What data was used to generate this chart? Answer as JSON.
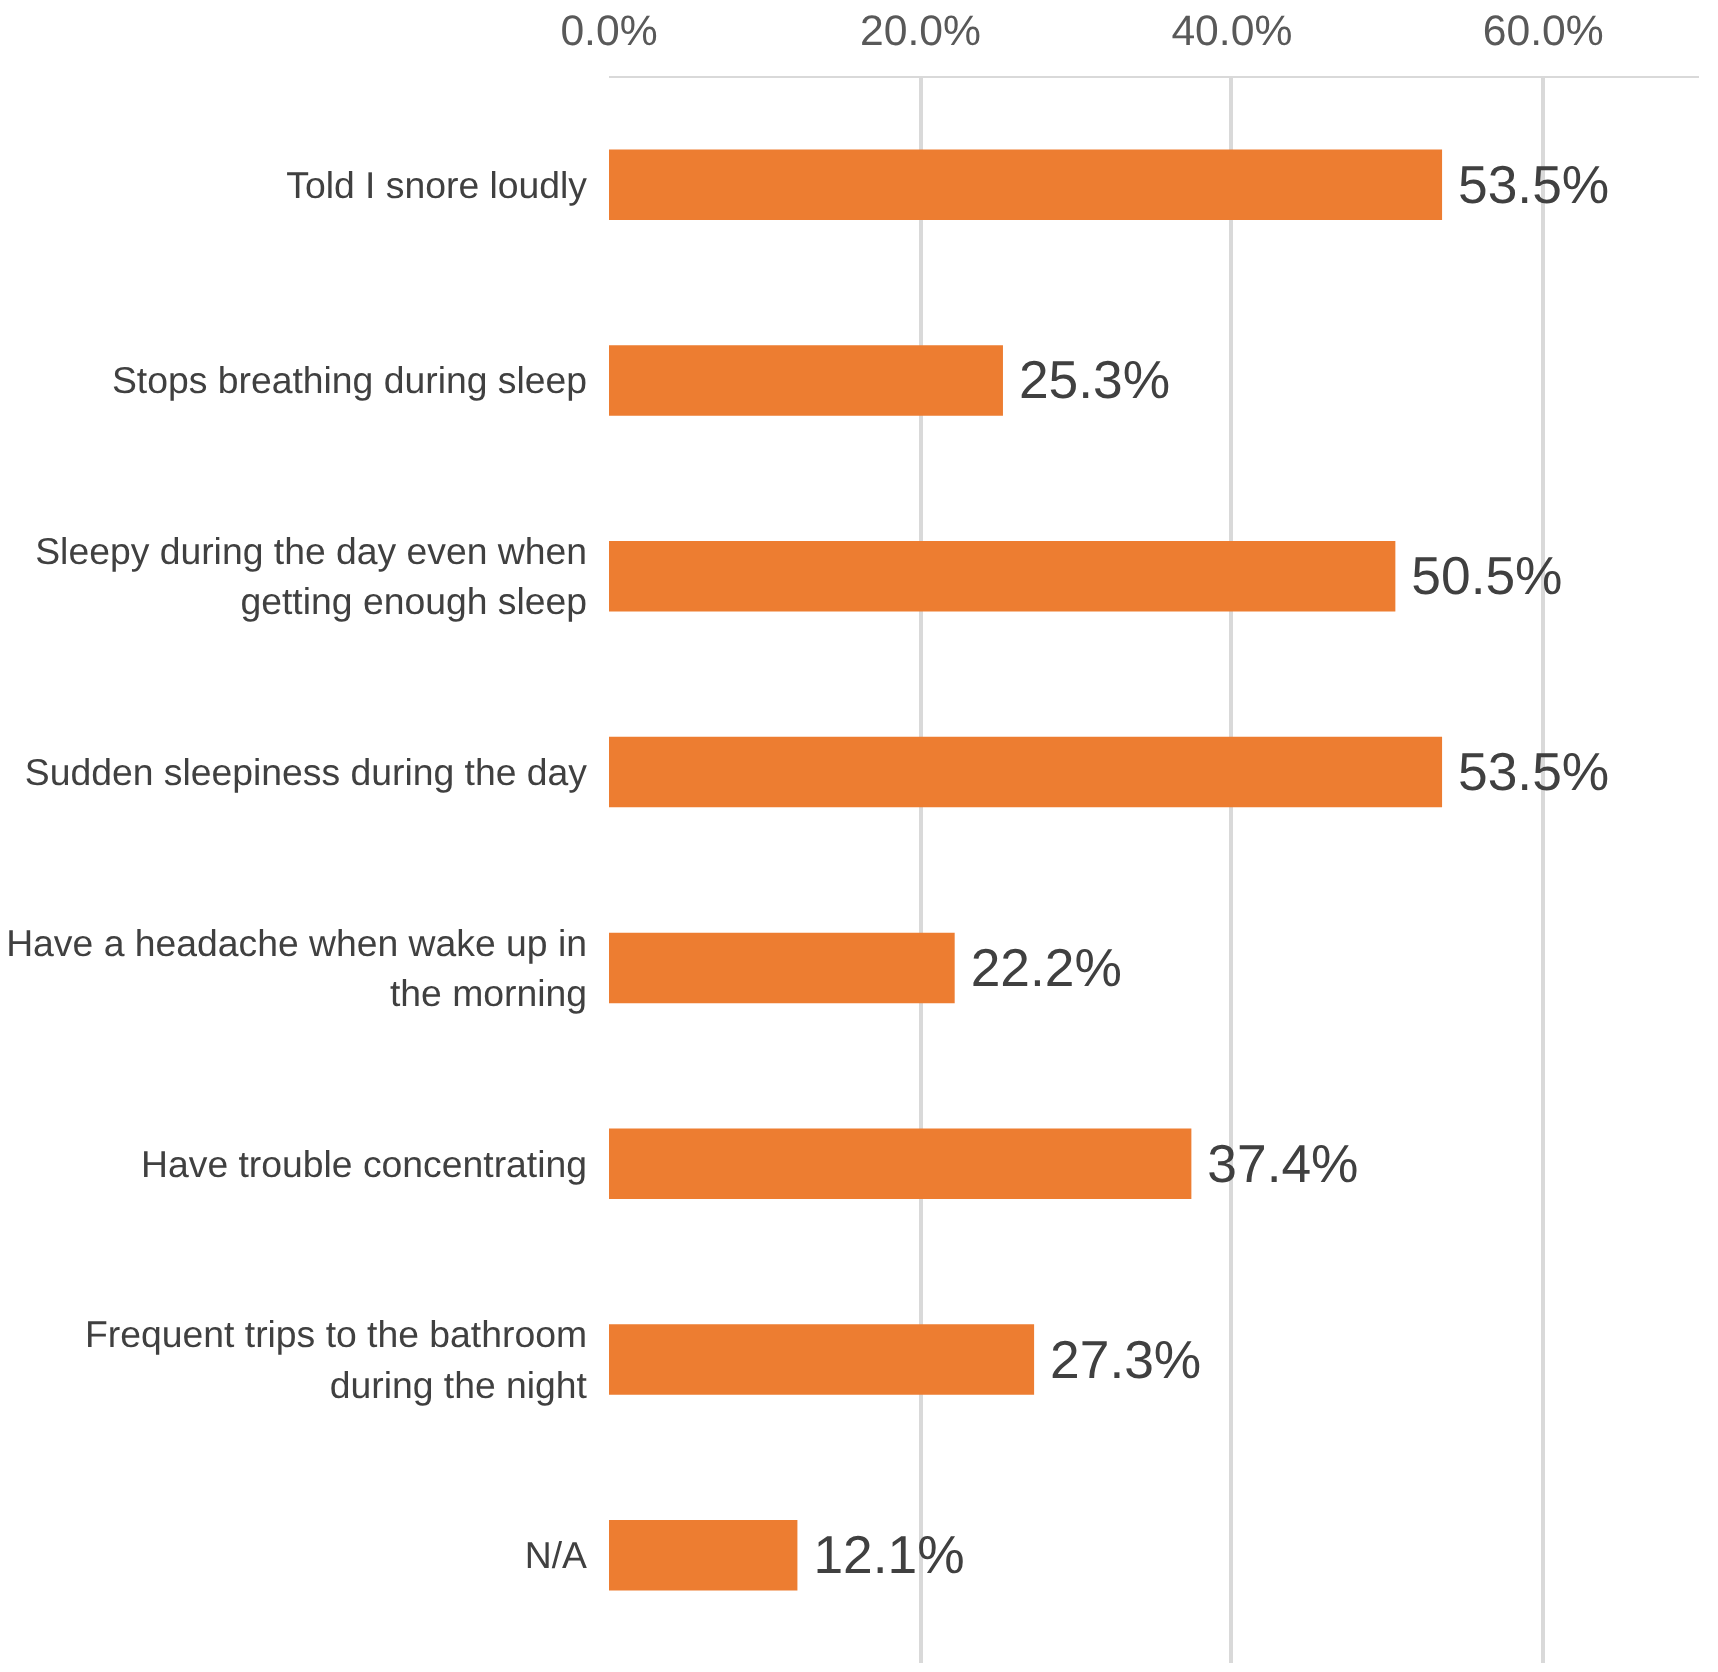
{
  "chart_data": {
    "type": "bar",
    "orientation": "horizontal",
    "categories": [
      "Told I snore loudly",
      "Stops breathing during sleep",
      "Sleepy during the day even when getting enough sleep",
      "Sudden sleepiness during the day",
      "Have a headache when wake up in the morning",
      "Have trouble concentrating",
      "Frequent trips to the bathroom during the night",
      "N/A"
    ],
    "values": [
      53.5,
      25.3,
      50.5,
      53.5,
      22.2,
      37.4,
      27.3,
      12.1
    ],
    "value_labels": [
      "53.5%",
      "25.3%",
      "50.5%",
      "53.5%",
      "22.2%",
      "37.4%",
      "27.3%",
      "12.1%"
    ],
    "color": "#ed7d31",
    "xlim": [
      0,
      70
    ],
    "xticks": [
      {
        "value": 0,
        "label": "0.0%"
      },
      {
        "value": 20,
        "label": "20.0%"
      },
      {
        "value": 40,
        "label": "40.0%"
      },
      {
        "value": 60,
        "label": "60.0%"
      }
    ],
    "grid": "x"
  }
}
